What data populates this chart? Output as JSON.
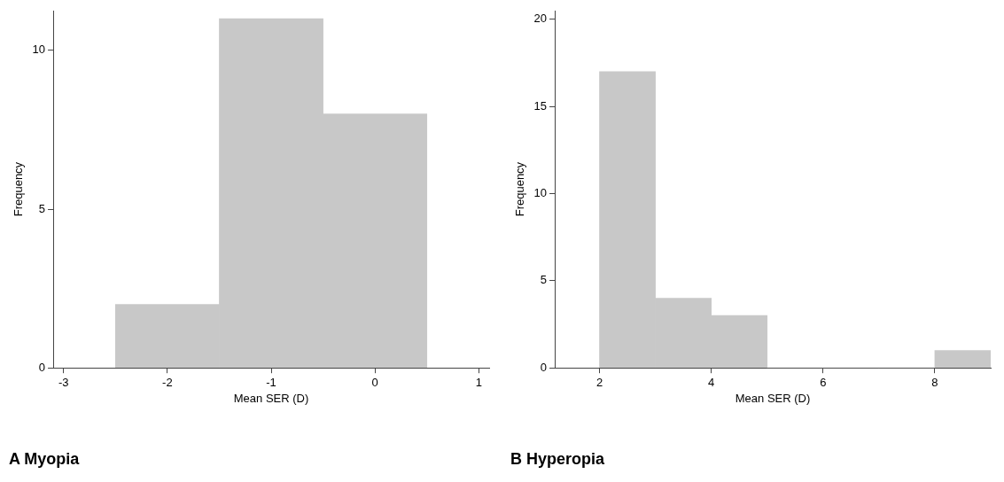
{
  "chart_data": [
    {
      "type": "histogram",
      "title": "A Myopia",
      "xlabel": "Mean SER (D)",
      "ylabel": "Frequency",
      "bins": [
        -2.5,
        -1.5,
        -0.5,
        0.5
      ],
      "values": [
        2,
        11,
        8
      ],
      "color": "#c8c8c8",
      "xlim": [
        -3.1,
        1.1
      ],
      "xticks": [
        -3,
        -2,
        -1,
        0,
        1
      ],
      "ylim": [
        0,
        11.25
      ],
      "yticks": [
        0,
        5,
        10
      ],
      "grid": false
    },
    {
      "type": "histogram",
      "title": "B Hyperopia",
      "xlabel": "Mean SER (D)",
      "ylabel": "Frequency",
      "bins": [
        2,
        3,
        4,
        5,
        6,
        7,
        8,
        9
      ],
      "values": [
        17,
        4,
        3,
        0,
        0,
        0,
        1
      ],
      "color": "#c8c8c8",
      "xlim": [
        1.2,
        9
      ],
      "xticks": [
        2,
        4,
        6,
        8
      ],
      "ylim": [
        0,
        20.5
      ],
      "yticks": [
        0,
        5,
        10,
        15,
        20
      ],
      "grid": false
    }
  ]
}
